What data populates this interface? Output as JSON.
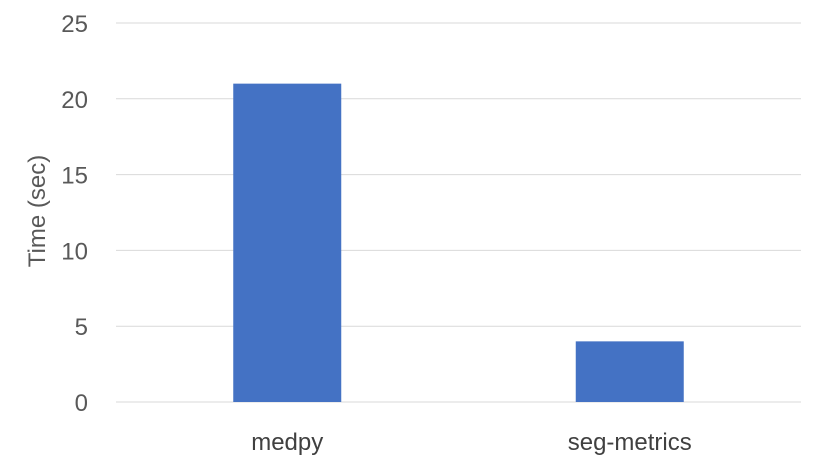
{
  "chart_data": {
    "type": "bar",
    "title": "",
    "xlabel": "",
    "ylabel": "Time (sec)",
    "categories": [
      "medpy",
      "seg-metrics"
    ],
    "series": [
      {
        "values": [
          21,
          4
        ],
        "color": "#4472c4"
      }
    ],
    "ylim": [
      0,
      25
    ],
    "yticks": [
      0,
      5,
      10,
      15,
      20,
      25
    ],
    "grid": true,
    "legend": "none"
  }
}
